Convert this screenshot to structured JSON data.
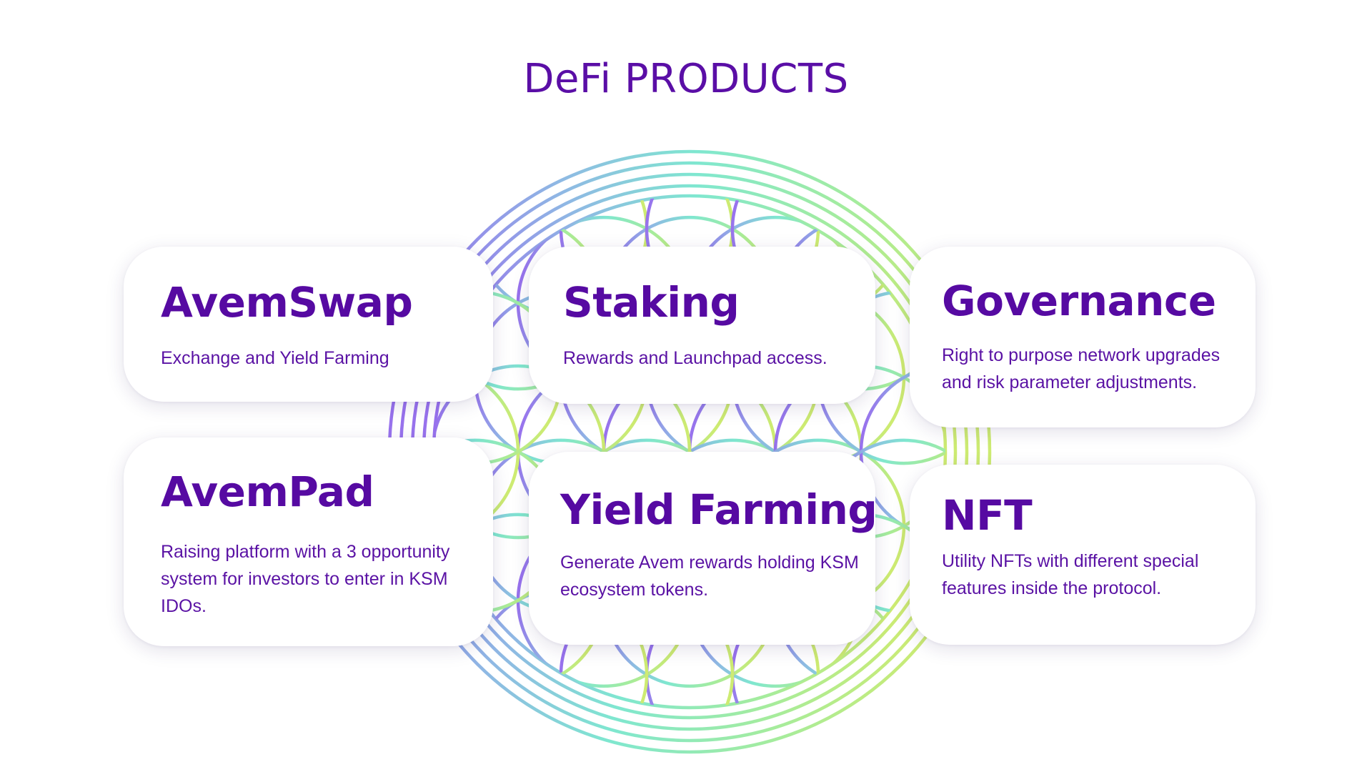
{
  "title": "DeFi PRODUCTS",
  "colors": {
    "title": "#5a0ea6",
    "card_heading": "#560aa2",
    "card_text": "#5a12a4",
    "gradient_purple": "#9b5cf0",
    "gradient_teal": "#7fe7d0",
    "gradient_lime": "#c8ee7a"
  },
  "background_art": "flower-of-life-gradient",
  "cards": [
    {
      "heading": "AvemSwap",
      "text": "Exchange and Yield Farming"
    },
    {
      "heading": "Staking",
      "text": "Rewards and Launchpad access."
    },
    {
      "heading": "Governance",
      "text": "Right to purpose network upgrades and risk parameter adjustments."
    },
    {
      "heading": "AvemPad",
      "text": "Raising platform with a 3 opportunity system for investors to enter in KSM IDOs."
    },
    {
      "heading": "Yield Farming",
      "text": "Generate Avem rewards holding KSM ecosystem tokens."
    },
    {
      "heading": "NFT",
      "text": "Utility NFTs with different special features inside the protocol."
    }
  ]
}
